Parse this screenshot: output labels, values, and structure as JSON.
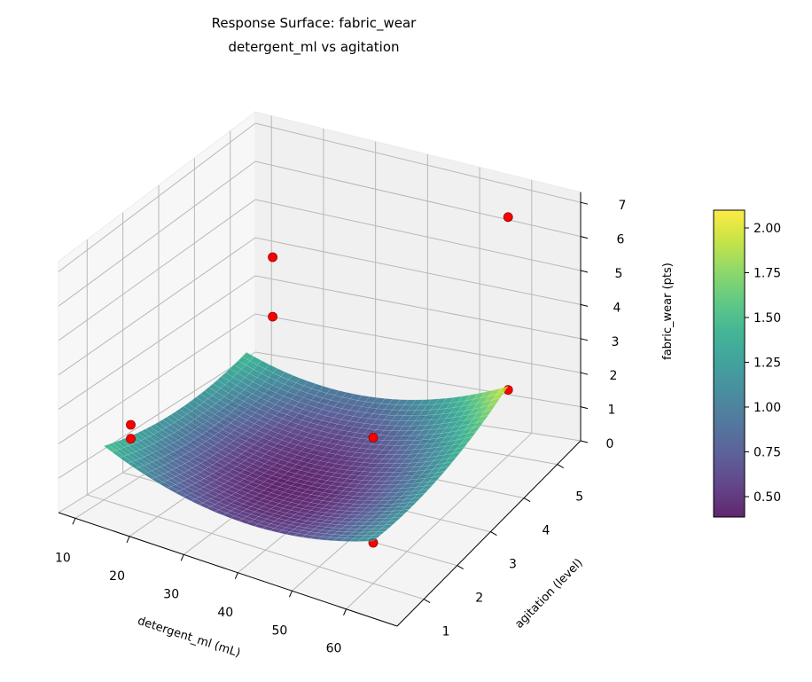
{
  "chart_data": {
    "type": "surface3d",
    "title": "Response Surface: fabric_wear",
    "subtitle": "detergent_ml vs agitation",
    "xlabel": "detergent_ml (mL)",
    "ylabel": "agitation (level)",
    "zlabel": "fabric_wear (pts)",
    "xlim": [
      6.9,
      69.4
    ],
    "ylim": [
      0.2,
      5.7
    ],
    "zlim": [
      0,
      7.3
    ],
    "x_ticks": [
      "10",
      "20",
      "30",
      "40",
      "50",
      "60"
    ],
    "y_ticks": [
      "1",
      "2",
      "3",
      "4",
      "5"
    ],
    "z_ticks": [
      "0",
      "1",
      "2",
      "3",
      "4",
      "5",
      "6",
      "7"
    ],
    "grid": true,
    "surface": {
      "x_range": [
        10,
        60
      ],
      "y_range": [
        1,
        5
      ],
      "model": "0.4 + 0.00128*(x-35)^2 + 0.089*(y-2.5)^2 + 0.004*(x-35)*(y-2.5)",
      "colormap": "viridis",
      "alpha": 0.85
    },
    "points": [
      {
        "x": 60,
        "y": 5,
        "z": 6.9
      },
      {
        "x": 60,
        "y": 5,
        "z": 1.9
      },
      {
        "x": 15,
        "y": 5,
        "z": 4.2
      },
      {
        "x": 15,
        "y": 5,
        "z": 2.6
      },
      {
        "x": 15,
        "y": 1,
        "z": 2.4
      },
      {
        "x": 15,
        "y": 1,
        "z": 2.0
      },
      {
        "x": 60,
        "y": 1,
        "z": 4.3
      },
      {
        "x": 60,
        "y": 1,
        "z": 1.2
      }
    ],
    "point_color": "#ff0000",
    "colorbar": {
      "range": [
        0.386,
        2.099
      ],
      "ticks": [
        "0.50",
        "0.75",
        "1.00",
        "1.25",
        "1.50",
        "1.75",
        "2.00"
      ]
    }
  }
}
